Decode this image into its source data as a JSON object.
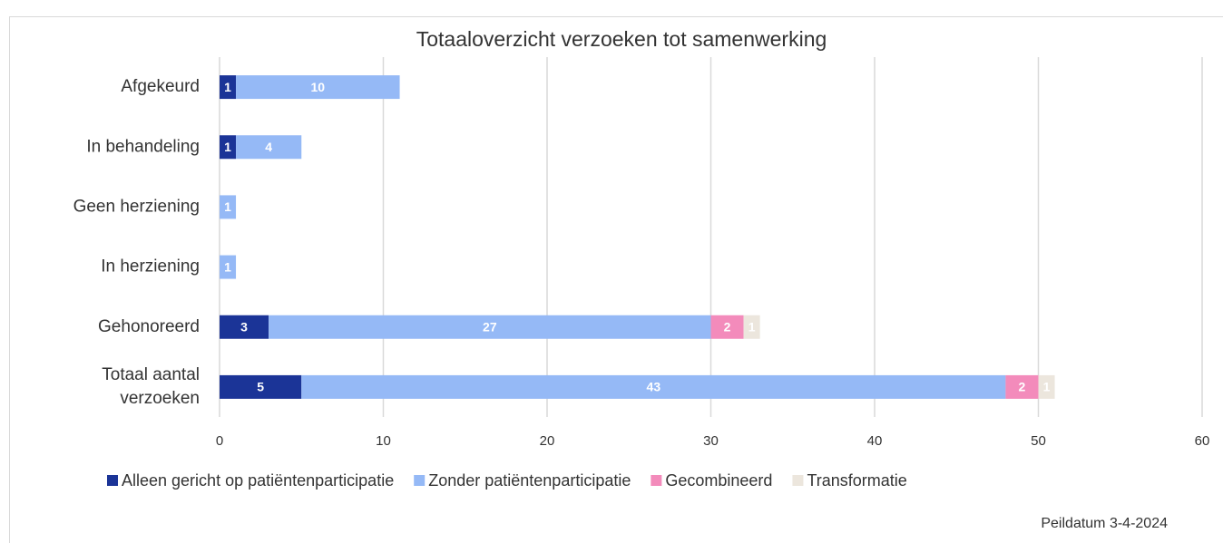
{
  "chart_data": {
    "type": "stacked-bar-horizontal",
    "title": "Totaaloverzicht verzoeken tot samenwerking",
    "categories": [
      "Afgekeurd",
      "In behandeling",
      "Geen herziening",
      "In herziening",
      "Gehonoreerd",
      "Totaal aantal verzoeken"
    ],
    "series": [
      {
        "name": "Alleen gericht op patiëntenparticipatie",
        "color": "#1b3497",
        "label_color": "#ffffff",
        "values": [
          1,
          1,
          0,
          0,
          3,
          5
        ]
      },
      {
        "name": "Zonder patiëntenparticipatie",
        "color": "#95b9f6",
        "label_color": "#ffffff",
        "values": [
          10,
          4,
          1,
          1,
          27,
          43
        ]
      },
      {
        "name": "Gecombineerd",
        "color": "#f38bbb",
        "label_color": "#ffffff",
        "values": [
          0,
          0,
          0,
          0,
          2,
          2
        ]
      },
      {
        "name": "Transformatie",
        "color": "#ece6dd",
        "label_color": "#ffffff",
        "values": [
          0,
          0,
          0,
          0,
          1,
          1
        ]
      }
    ],
    "xlim": [
      0,
      60
    ],
    "xticks": [
      0,
      10,
      20,
      30,
      40,
      50,
      60
    ],
    "grid": true,
    "legend": "bottom",
    "annotation": "Peildatum 3-4-2024"
  }
}
